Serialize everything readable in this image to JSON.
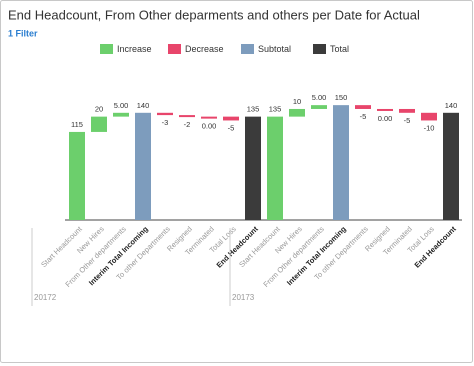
{
  "chart_data": {
    "type": "waterfall",
    "title": "End Headcount, From Other deparments and others per Date for Actual",
    "subtitle": "1 Filter",
    "legend": [
      {
        "name": "Increase",
        "color": "#6ccf6c"
      },
      {
        "name": "Decrease",
        "color": "#e8456b"
      },
      {
        "name": "Subtotal",
        "color": "#7d9cbd"
      },
      {
        "name": "Total",
        "color": "#3b3b3b"
      }
    ],
    "ylim": [
      0,
      175
    ],
    "groups": [
      {
        "name": "20172",
        "categories": [
          "Start Headcount",
          "New Hires",
          "From Other departments",
          "Interim Total Incoming",
          "To other Departments",
          "Resigned",
          "Terminated",
          "Total Loss",
          "End Headcount"
        ],
        "kinds": [
          "Increase",
          "Increase",
          "Increase",
          "Subtotal",
          "Decrease",
          "Decrease",
          "Decrease",
          "Decrease",
          "Total"
        ],
        "values": [
          115,
          20,
          5,
          140,
          -3,
          -2,
          0,
          -5,
          135
        ],
        "value_labels": [
          "115",
          "20",
          "5.00",
          "140",
          "-3",
          "-2",
          "0.00",
          "-5",
          "135"
        ]
      },
      {
        "name": "20173",
        "categories": [
          "Start Headcount",
          "New Hires",
          "From Other departments",
          "Interim Total Incoming",
          "To other Departments",
          "Resigned",
          "Terminated",
          "Total Loss",
          "End Headcount"
        ],
        "kinds": [
          "Increase",
          "Increase",
          "Increase",
          "Subtotal",
          "Decrease",
          "Decrease",
          "Decrease",
          "Decrease",
          "Total"
        ],
        "values": [
          135,
          10,
          5,
          150,
          -5,
          0,
          -5,
          -10,
          140
        ],
        "value_labels": [
          "135",
          "10",
          "5.00",
          "150",
          "-5",
          "0.00",
          "-5",
          "-10",
          "140"
        ]
      }
    ]
  }
}
